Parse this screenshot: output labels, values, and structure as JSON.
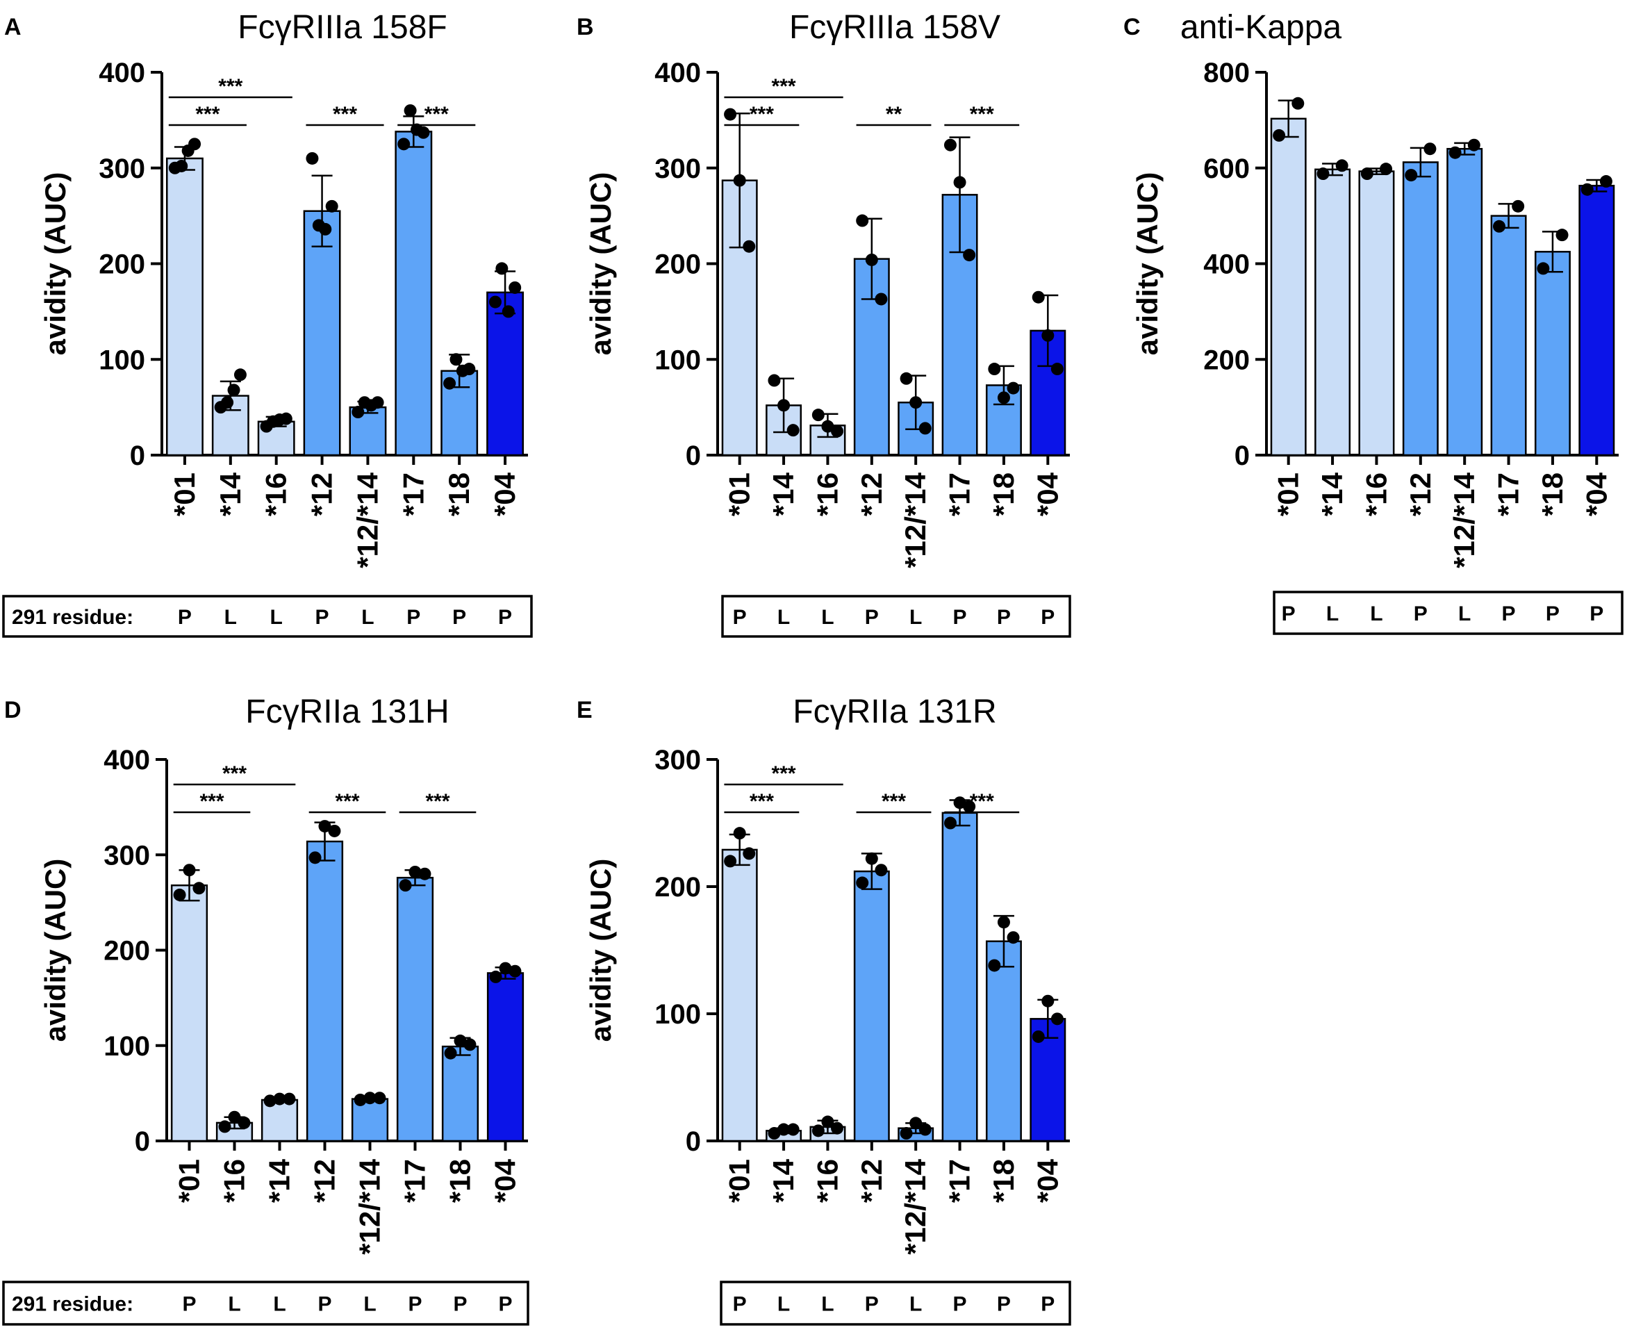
{
  "colors": {
    "light": "#c9ddf7",
    "mid": "#5ea4f8",
    "dark": "#0b14e8",
    "axis": "#000000",
    "highlight": "#e8141b"
  },
  "residue_label": "291 residue:",
  "chart_data": [
    {
      "panel": "A",
      "type": "bar",
      "title": "FcγRIIIa 158F",
      "ylabel": "avidity (AUC)",
      "xlabel": "",
      "ylim": [
        0,
        400
      ],
      "yticks": [
        0,
        100,
        200,
        300,
        400
      ],
      "categories": [
        "*01",
        "*14",
        "*16",
        "*12",
        "*12/*14",
        "*17",
        "*18",
        "*04"
      ],
      "color_groups": [
        "light",
        "light",
        "light",
        "mid",
        "mid",
        "mid",
        "mid",
        "dark"
      ],
      "values": [
        310,
        62,
        35,
        255,
        50,
        338,
        88,
        170
      ],
      "errors": [
        12,
        15,
        5,
        37,
        6,
        16,
        17,
        22
      ],
      "points": [
        [
          300,
          302,
          318,
          325
        ],
        [
          50,
          55,
          68,
          84
        ],
        [
          30,
          35,
          37,
          38
        ],
        [
          310,
          240,
          236,
          260
        ],
        [
          45,
          55,
          52,
          55
        ],
        [
          325,
          360,
          340,
          337
        ],
        [
          75,
          100,
          88,
          90
        ],
        [
          160,
          195,
          150,
          175
        ]
      ],
      "residues": [
        "P",
        "L",
        "L",
        "P",
        "L",
        "P",
        "P",
        "P"
      ],
      "residue_highlight_index": 4,
      "show_residue_label": true,
      "comparisons": [
        {
          "from": 0,
          "to": 1,
          "label": "***",
          "level": 0
        },
        {
          "from": 0,
          "to": 2,
          "label": "***",
          "level": 1
        },
        {
          "from": 3,
          "to": 4,
          "label": "***",
          "level": 0
        },
        {
          "from": 5,
          "to": 6,
          "label": "***",
          "level": 0
        }
      ]
    },
    {
      "panel": "B",
      "type": "bar",
      "title": "FcγRIIIa 158V",
      "ylabel": "avidity (AUC)",
      "xlabel": "",
      "ylim": [
        0,
        400
      ],
      "yticks": [
        0,
        100,
        200,
        300,
        400
      ],
      "categories": [
        "*01",
        "*14",
        "*16",
        "*12",
        "*12/*14",
        "*17",
        "*18",
        "*04"
      ],
      "color_groups": [
        "light",
        "light",
        "light",
        "mid",
        "mid",
        "mid",
        "mid",
        "dark"
      ],
      "values": [
        287,
        52,
        31,
        205,
        55,
        272,
        73,
        130
      ],
      "errors": [
        70,
        28,
        12,
        42,
        28,
        60,
        20,
        37
      ],
      "points": [
        [
          356,
          287,
          218
        ],
        [
          78,
          52,
          26
        ],
        [
          42,
          30,
          25
        ],
        [
          245,
          204,
          163
        ],
        [
          80,
          55,
          28
        ],
        [
          324,
          285,
          209
        ],
        [
          90,
          60,
          70
        ],
        [
          165,
          125,
          90
        ]
      ],
      "residues": [
        "P",
        "L",
        "L",
        "P",
        "L",
        "P",
        "P",
        "P"
      ],
      "residue_highlight_index": 4,
      "show_residue_label": false,
      "comparisons": [
        {
          "from": 0,
          "to": 1,
          "label": "***",
          "level": 0
        },
        {
          "from": 0,
          "to": 2,
          "label": "***",
          "level": 1
        },
        {
          "from": 3,
          "to": 4,
          "label": "**",
          "level": 0
        },
        {
          "from": 5,
          "to": 6,
          "label": "***",
          "level": 0
        }
      ]
    },
    {
      "panel": "C",
      "type": "bar",
      "title": "anti-Kappa",
      "ylabel": "avidity (AUC)",
      "xlabel": "",
      "ylim": [
        0,
        800
      ],
      "yticks": [
        0,
        200,
        400,
        600,
        800
      ],
      "categories": [
        "*01",
        "*14",
        "*16",
        "*12",
        "*12/*14",
        "*17",
        "*18",
        "*04"
      ],
      "color_groups": [
        "light",
        "light",
        "light",
        "mid",
        "mid",
        "mid",
        "mid",
        "dark"
      ],
      "values": [
        703,
        597,
        593,
        612,
        640,
        500,
        425,
        563
      ],
      "errors": [
        38,
        12,
        6,
        30,
        12,
        25,
        42,
        12
      ],
      "points": [
        [
          668,
          735
        ],
        [
          588,
          605
        ],
        [
          588,
          598
        ],
        [
          585,
          640
        ],
        [
          632,
          648
        ],
        [
          478,
          520
        ],
        [
          390,
          460
        ],
        [
          555,
          572
        ]
      ],
      "residues": [
        "P",
        "L",
        "L",
        "P",
        "L",
        "P",
        "P",
        "P"
      ],
      "residue_highlight_index": 4,
      "show_residue_label": false,
      "comparisons": []
    },
    {
      "panel": "D",
      "type": "bar",
      "title": "FcγRIIa 131H",
      "ylabel": "avidity (AUC)",
      "xlabel": "",
      "ylim": [
        0,
        400
      ],
      "yticks": [
        0,
        100,
        200,
        300,
        400
      ],
      "categories": [
        "*01",
        "*16",
        "*14",
        "*12",
        "*12/*14",
        "*17",
        "*18",
        "*04"
      ],
      "color_groups": [
        "light",
        "light",
        "light",
        "mid",
        "mid",
        "mid",
        "mid",
        "dark"
      ],
      "values": [
        268,
        19,
        43,
        314,
        44,
        276,
        99,
        176
      ],
      "errors": [
        16,
        6,
        2,
        20,
        2,
        8,
        9,
        6
      ],
      "points": [
        [
          258,
          284,
          265
        ],
        [
          15,
          25,
          19
        ],
        [
          42,
          44,
          44
        ],
        [
          297,
          330,
          325
        ],
        [
          43,
          45,
          45
        ],
        [
          268,
          282,
          280
        ],
        [
          92,
          105,
          101
        ],
        [
          172,
          181,
          178
        ]
      ],
      "residues": [
        "P",
        "L",
        "L",
        "P",
        "L",
        "P",
        "P",
        "P"
      ],
      "residue_highlight_index": 4,
      "show_residue_label": true,
      "comparisons": [
        {
          "from": 0,
          "to": 1,
          "label": "***",
          "level": 0
        },
        {
          "from": 0,
          "to": 2,
          "label": "***",
          "level": 1
        },
        {
          "from": 3,
          "to": 4,
          "label": "***",
          "level": 0
        },
        {
          "from": 5,
          "to": 6,
          "label": "***",
          "level": 0
        }
      ]
    },
    {
      "panel": "E",
      "type": "bar",
      "title": "FcγRIIa 131R",
      "ylabel": "avidity (AUC)",
      "xlabel": "",
      "ylim": [
        0,
        300
      ],
      "yticks": [
        0,
        100,
        200,
        300
      ],
      "categories": [
        "*01",
        "*14",
        "*16",
        "*12",
        "*12/*14",
        "*17",
        "*18",
        "*04"
      ],
      "color_groups": [
        "light",
        "light",
        "light",
        "mid",
        "mid",
        "mid",
        "mid",
        "dark"
      ],
      "values": [
        229,
        8,
        11,
        212,
        10,
        258,
        157,
        96
      ],
      "errors": [
        12,
        2,
        5,
        14,
        4,
        10,
        20,
        15
      ],
      "points": [
        [
          220,
          242,
          226
        ],
        [
          6,
          9,
          9
        ],
        [
          8,
          15,
          10
        ],
        [
          203,
          222,
          213
        ],
        [
          6,
          14,
          9
        ],
        [
          250,
          266,
          263
        ],
        [
          138,
          172,
          160
        ],
        [
          82,
          110,
          96
        ]
      ],
      "residues": [
        "P",
        "L",
        "L",
        "P",
        "L",
        "P",
        "P",
        "P"
      ],
      "residue_highlight_index": 4,
      "show_residue_label": false,
      "comparisons": [
        {
          "from": 0,
          "to": 1,
          "label": "***",
          "level": 0
        },
        {
          "from": 0,
          "to": 2,
          "label": "***",
          "level": 1
        },
        {
          "from": 3,
          "to": 4,
          "label": "***",
          "level": 0
        },
        {
          "from": 5,
          "to": 6,
          "label": "***",
          "level": 0
        }
      ]
    }
  ]
}
